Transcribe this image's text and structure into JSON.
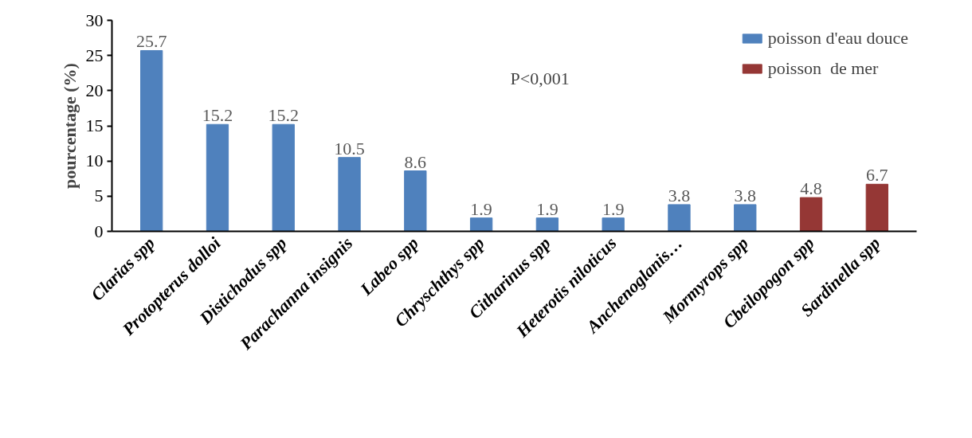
{
  "chart_data": {
    "type": "bar",
    "ylabel": "pourcentage (%)",
    "categories": [
      "Clarias spp",
      "Protopterus dolloi",
      "Distichodus spp",
      "Parachanna insignis",
      "Labeo spp",
      "Chryschthys spp",
      "Citharinus spp",
      "Heterotis niloticus",
      "Anchenoglanis…",
      "Mormyrops spp",
      "Cbeilopogon spp",
      "Sardinella spp"
    ],
    "series": [
      {
        "name": "poisson d'eau douce",
        "color": "#4f81bd",
        "values": [
          25.7,
          15.2,
          15.2,
          10.5,
          8.6,
          1.9,
          1.9,
          1.9,
          3.8,
          3.8,
          null,
          null
        ]
      },
      {
        "name": "poisson  de mer",
        "color": "#953735",
        "values": [
          null,
          null,
          null,
          null,
          null,
          null,
          null,
          null,
          null,
          null,
          4.8,
          6.7
        ]
      }
    ],
    "ylim": [
      0,
      30
    ],
    "yticks": [
      0,
      5,
      10,
      15,
      20,
      25,
      30
    ],
    "grid": false,
    "legend": "top right",
    "data_labels": true,
    "annotations": [
      "P<0,001"
    ]
  }
}
